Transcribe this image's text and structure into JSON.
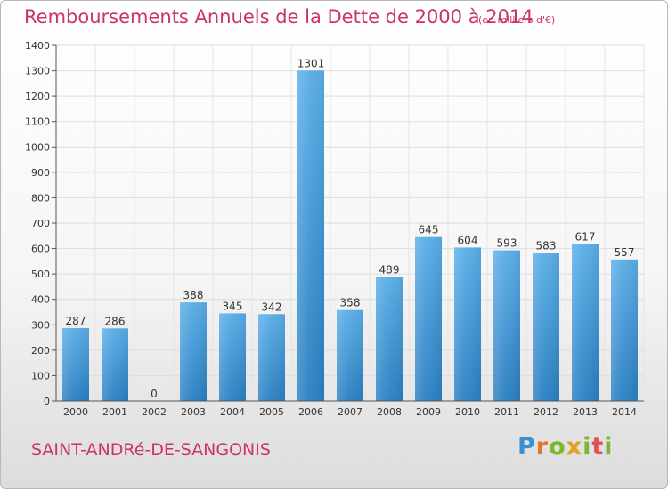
{
  "header": {
    "title": "Remboursements Annuels de la Dette de 2000 à 2014",
    "subtitle": "(en milliers d'€)"
  },
  "footer": {
    "commune": "SAINT-ANDRé-DE-SANGONIS",
    "logo": "Proxiti"
  },
  "colors": {
    "title": "#cc3366",
    "bar_light": "#5aaee8",
    "bar_dark": "#2b7fc2"
  },
  "chart_data": {
    "type": "bar",
    "title": "Remboursements Annuels de la Dette de 2000 à 2014",
    "categories": [
      "2000",
      "2001",
      "2002",
      "2003",
      "2004",
      "2005",
      "2006",
      "2007",
      "2008",
      "2009",
      "2010",
      "2011",
      "2012",
      "2013",
      "2014"
    ],
    "values": [
      287,
      286,
      0,
      388,
      345,
      342,
      1301,
      358,
      489,
      645,
      604,
      593,
      583,
      617,
      557
    ],
    "xlabel": "",
    "ylabel": "",
    "ylim": [
      0,
      1400
    ],
    "yticks": [
      0,
      100,
      200,
      300,
      400,
      500,
      600,
      700,
      800,
      900,
      1000,
      1100,
      1200,
      1300,
      1400
    ],
    "grid": true,
    "legend": "none"
  }
}
